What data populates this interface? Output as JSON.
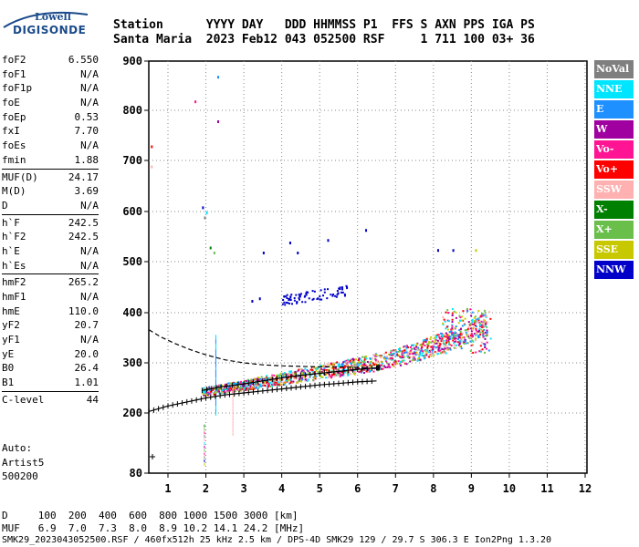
{
  "logo": {
    "top": "Lowell",
    "main": "DIGISONDE"
  },
  "header": {
    "line1": "Station      YYYY DAY   DDD HHMMSS P1  FFS S AXN PPS IGA PS",
    "line2": "Santa Maria  2023 Feb12 043 052500 RSF     1 711 100 03+ 36"
  },
  "params": [
    {
      "k": "foF2",
      "v": "6.550"
    },
    {
      "k": "foF1",
      "v": "N/A"
    },
    {
      "k": "foF1p",
      "v": "N/A"
    },
    {
      "k": "foE",
      "v": "N/A"
    },
    {
      "k": "foEp",
      "v": "0.53"
    },
    {
      "k": "fxI",
      "v": "7.70"
    },
    {
      "k": "foEs",
      "v": "N/A"
    },
    {
      "k": "fmin",
      "v": "1.88"
    },
    {
      "k": "MUF(D)",
      "v": "24.17",
      "sep": true
    },
    {
      "k": "M(D)",
      "v": "3.69"
    },
    {
      "k": "D",
      "v": "N/A"
    },
    {
      "k": "h`F",
      "v": "242.5",
      "sep": true
    },
    {
      "k": "h`F2",
      "v": "242.5"
    },
    {
      "k": "h`E",
      "v": "N/A"
    },
    {
      "k": "h`Es",
      "v": "N/A"
    },
    {
      "k": "hmF2",
      "v": "265.2",
      "sep": true
    },
    {
      "k": "hmF1",
      "v": "N/A"
    },
    {
      "k": "hmE",
      "v": "110.0"
    },
    {
      "k": "yF2",
      "v": "20.7"
    },
    {
      "k": "yF1",
      "v": "N/A"
    },
    {
      "k": "yE",
      "v": "20.0"
    },
    {
      "k": "B0",
      "v": "26.4"
    },
    {
      "k": "B1",
      "v": "1.01"
    },
    {
      "k": "C-level",
      "v": "44",
      "sep": true
    }
  ],
  "auto": {
    "l1": "Auto:",
    "l2": "Artist5",
    "l3": "500200"
  },
  "legend": [
    {
      "label": "NoVal",
      "color": "#7f7f7f"
    },
    {
      "label": "NNE",
      "color": "#00e5ff"
    },
    {
      "label": "E",
      "color": "#1e90ff"
    },
    {
      "label": "W",
      "color": "#a000a0"
    },
    {
      "label": "Vo-",
      "color": "#ff1493"
    },
    {
      "label": "Vo+",
      "color": "#ff0000"
    },
    {
      "label": "SSW",
      "color": "#ffb0b0"
    },
    {
      "label": "X-",
      "color": "#008000"
    },
    {
      "label": "X+",
      "color": "#6abf4b"
    },
    {
      "label": "SSE",
      "color": "#c8c800"
    },
    {
      "label": "NNW",
      "color": "#0000c8"
    }
  ],
  "footer": {
    "l1": "D     100  200  400  600  800 1000 1500 3000 [km]",
    "l2": "MUF   6.9  7.0  7.3  8.0  8.9 10.2 14.1 24.2 [MHz]",
    "l3": "SMK29_2023043052500.RSF / 460fx512h 25 kHz 2.5 km / DPS-4D SMK29 129 / 29.7 S 306.3 E Ion2Png 1.3.20"
  },
  "chart_data": {
    "type": "scatter",
    "xlim": [
      0.5,
      12
    ],
    "ylim": [
      80,
      900
    ],
    "xticks": [
      1,
      2,
      3,
      4,
      5,
      6,
      7,
      8,
      9,
      10,
      11,
      12
    ],
    "yticks": [
      80,
      200,
      300,
      400,
      500,
      600,
      700,
      800,
      900
    ],
    "grid": "dotted",
    "traces": [
      {
        "name": "profile",
        "style": "dashed",
        "x": [
          0.5,
          0.8,
          1.2,
          1.6,
          2.0,
          2.5,
          3.0,
          3.5,
          4.0,
          4.5,
          5.0,
          5.5,
          6.0,
          6.3
        ],
        "y": [
          366,
          352,
          338,
          326,
          316,
          306,
          300,
          296,
          294,
          293,
          292,
          292,
          291,
          290
        ]
      },
      {
        "name": "o-trace",
        "style": "solid",
        "x": [
          0.5,
          1.0,
          1.5,
          2.0,
          2.5,
          3.0,
          3.5,
          4.0,
          4.5,
          5.0,
          5.5,
          6.0,
          6.5
        ],
        "y": [
          203,
          214,
          222,
          230,
          236,
          240,
          244,
          248,
          252,
          256,
          259,
          262,
          264
        ]
      },
      {
        "name": "x-trace",
        "style": "solid",
        "x": [
          1.9,
          2.4,
          3.0,
          3.5,
          4.0,
          4.5,
          5.0,
          5.5,
          6.0,
          6.5,
          6.6
        ],
        "y": [
          245,
          252,
          258,
          264,
          270,
          275,
          279,
          283,
          287,
          290,
          291
        ]
      }
    ]
  }
}
